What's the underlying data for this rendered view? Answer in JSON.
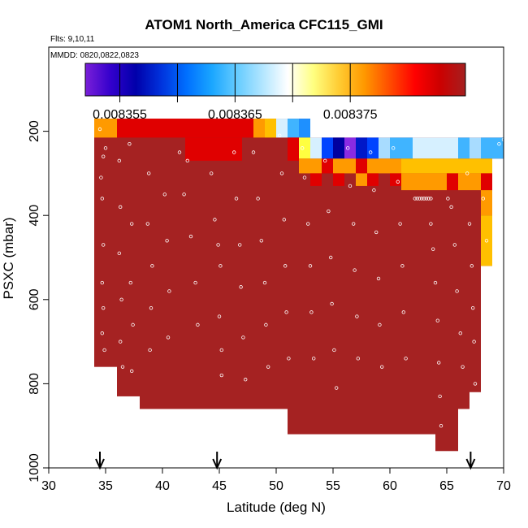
{
  "chart_data": {
    "type": "heatmap",
    "title": "ATOM1 North_America CFC115_GMI",
    "flights_label": "Flts: 9,10,11",
    "dates_label": "MMDD: 0820,0822,0823",
    "xlabel": "Latitude (deg N)",
    "ylabel": "PSXC (mbar)",
    "xlim": [
      30,
      70
    ],
    "ylim": [
      1000,
      0
    ],
    "x_ticks": [
      30,
      35,
      40,
      45,
      50,
      55,
      60,
      65,
      70
    ],
    "y_ticks": [
      200,
      400,
      600,
      800,
      1000
    ],
    "colorbar": {
      "range": [
        0.008352,
        0.008385
      ],
      "ticks": [
        0.008355,
        0.008365,
        0.008375
      ],
      "tick_labels": [
        "0.008355",
        "0.008365",
        "0.008375"
      ],
      "divisions": [
        0.008355,
        0.00836,
        0.008365,
        0.00837,
        0.008375
      ],
      "colors": [
        "#7a1fd8",
        "#3300cc",
        "#0000aa",
        "#0033dd",
        "#0070ff",
        "#1aa6ff",
        "#66ccff",
        "#b3e6ff",
        "#ffffff",
        "#ffff80",
        "#ffcc33",
        "#ff9900",
        "#ff4d00",
        "#ff0000",
        "#cc0000",
        "#a52020"
      ]
    },
    "columns": [
      {
        "lat": [
          34,
          36
        ],
        "top": 170,
        "bottom": 760,
        "bands": [
          [
            170,
            215,
            "orange"
          ]
        ]
      },
      {
        "lat": [
          36,
          38
        ],
        "top": 170,
        "bottom": 830,
        "bands": [
          [
            170,
            215,
            "red"
          ]
        ]
      },
      {
        "lat": [
          38,
          42
        ],
        "top": 170,
        "bottom": 860,
        "bands": [
          [
            170,
            215,
            "red"
          ]
        ]
      },
      {
        "lat": [
          42,
          47
        ],
        "top": 170,
        "bottom": 860,
        "bands": [
          [
            170,
            215,
            "red"
          ],
          [
            215,
            270,
            "red"
          ]
        ]
      },
      {
        "lat": [
          47,
          48
        ],
        "top": 170,
        "bottom": 860,
        "bands": [
          [
            170,
            215,
            "red"
          ]
        ]
      },
      {
        "lat": [
          48,
          49
        ],
        "top": 170,
        "bottom": 860,
        "bands": [
          [
            170,
            215,
            "orange"
          ]
        ]
      },
      {
        "lat": [
          49,
          50
        ],
        "top": 170,
        "bottom": 860,
        "bands": [
          [
            170,
            215,
            "gold"
          ]
        ]
      },
      {
        "lat": [
          50,
          51
        ],
        "top": 170,
        "bottom": 860,
        "bands": [
          [
            170,
            215,
            "lightblue"
          ]
        ]
      },
      {
        "lat": [
          51,
          52
        ],
        "top": 170,
        "bottom": 920,
        "bands": [
          [
            170,
            215,
            "skyblue"
          ],
          [
            215,
            270,
            "red"
          ]
        ]
      },
      {
        "lat": [
          52,
          53
        ],
        "top": 170,
        "bottom": 920,
        "bands": [
          [
            170,
            215,
            "deepskyblue"
          ],
          [
            215,
            265,
            "yellow"
          ],
          [
            265,
            300,
            "orange"
          ]
        ]
      },
      {
        "lat": [
          53,
          54
        ],
        "top": 215,
        "bottom": 920,
        "bands": [
          [
            215,
            265,
            "lightblue"
          ],
          [
            265,
            300,
            "orange"
          ],
          [
            300,
            330,
            "red"
          ]
        ]
      },
      {
        "lat": [
          54,
          55
        ],
        "top": 215,
        "bottom": 920,
        "bands": [
          [
            215,
            265,
            "blue"
          ],
          [
            265,
            300,
            "red"
          ]
        ]
      },
      {
        "lat": [
          55,
          56
        ],
        "top": 215,
        "bottom": 920,
        "bands": [
          [
            215,
            265,
            "navy"
          ],
          [
            265,
            300,
            "orange"
          ],
          [
            300,
            330,
            "red"
          ]
        ]
      },
      {
        "lat": [
          56,
          57
        ],
        "top": 215,
        "bottom": 920,
        "bands": [
          [
            215,
            265,
            "purple"
          ],
          [
            265,
            300,
            "orange"
          ]
        ]
      },
      {
        "lat": [
          57,
          58
        ],
        "top": 215,
        "bottom": 920,
        "bands": [
          [
            215,
            265,
            "darkblue"
          ],
          [
            265,
            300,
            "red"
          ],
          [
            300,
            330,
            "orange"
          ]
        ]
      },
      {
        "lat": [
          58,
          59
        ],
        "top": 215,
        "bottom": 920,
        "bands": [
          [
            215,
            265,
            "blue"
          ],
          [
            265,
            300,
            "orange"
          ],
          [
            300,
            330,
            "red"
          ]
        ]
      },
      {
        "lat": [
          59,
          60
        ],
        "top": 215,
        "bottom": 920,
        "bands": [
          [
            215,
            265,
            "azure"
          ],
          [
            265,
            300,
            "orange"
          ]
        ]
      },
      {
        "lat": [
          60,
          61
        ],
        "top": 215,
        "bottom": 920,
        "bands": [
          [
            215,
            265,
            "skyblue"
          ],
          [
            265,
            300,
            "orange"
          ],
          [
            300,
            330,
            "red"
          ]
        ]
      },
      {
        "lat": [
          61,
          62
        ],
        "top": 215,
        "bottom": 920,
        "bands": [
          [
            215,
            265,
            "skyblue"
          ],
          [
            265,
            300,
            "gold"
          ],
          [
            300,
            340,
            "orange"
          ]
        ]
      },
      {
        "lat": [
          62,
          64
        ],
        "top": 215,
        "bottom": 920,
        "bands": [
          [
            215,
            265,
            "lightblue"
          ],
          [
            265,
            300,
            "gold"
          ],
          [
            300,
            340,
            "orange"
          ]
        ]
      },
      {
        "lat": [
          64,
          65
        ],
        "top": 215,
        "bottom": 960,
        "bands": [
          [
            215,
            265,
            "lightblue"
          ],
          [
            265,
            300,
            "gold"
          ],
          [
            300,
            340,
            "orange"
          ]
        ]
      },
      {
        "lat": [
          65,
          66
        ],
        "top": 215,
        "bottom": 960,
        "bands": [
          [
            215,
            265,
            "lightblue"
          ],
          [
            265,
            300,
            "gold"
          ],
          [
            300,
            340,
            "red"
          ]
        ]
      },
      {
        "lat": [
          66,
          67
        ],
        "top": 215,
        "bottom": 860,
        "bands": [
          [
            215,
            265,
            "skyblue"
          ],
          [
            265,
            300,
            "gold"
          ],
          [
            300,
            340,
            "orange"
          ]
        ]
      },
      {
        "lat": [
          67,
          68
        ],
        "top": 215,
        "bottom": 820,
        "bands": [
          [
            215,
            265,
            "azure"
          ],
          [
            265,
            300,
            "gold"
          ],
          [
            300,
            340,
            "orange"
          ]
        ]
      },
      {
        "lat": [
          68,
          69
        ],
        "top": 215,
        "bottom": 520,
        "bands": [
          [
            215,
            265,
            "skyblue"
          ],
          [
            265,
            300,
            "gold"
          ],
          [
            300,
            340,
            "red"
          ],
          [
            340,
            400,
            "orange"
          ],
          [
            400,
            520,
            "gold"
          ]
        ]
      },
      {
        "lat": [
          69,
          70
        ],
        "top": 215,
        "bottom": 265,
        "bands": [
          [
            215,
            265,
            "skyblue"
          ]
        ]
      }
    ],
    "base_color": "#a52222",
    "obs_points": [
      [
        34.5,
        195
      ],
      [
        35,
        240
      ],
      [
        34.8,
        260
      ],
      [
        34.6,
        310
      ],
      [
        34.7,
        360
      ],
      [
        34.8,
        470
      ],
      [
        34.7,
        560
      ],
      [
        34.8,
        620
      ],
      [
        34.7,
        680
      ],
      [
        34.9,
        720
      ],
      [
        36.2,
        270
      ],
      [
        36.3,
        380
      ],
      [
        36.2,
        490
      ],
      [
        36.4,
        600
      ],
      [
        36.3,
        700
      ],
      [
        36.5,
        760
      ],
      [
        37.1,
        230
      ],
      [
        37.3,
        420
      ],
      [
        37.2,
        560
      ],
      [
        37.4,
        660
      ],
      [
        37.3,
        770
      ],
      [
        37.5,
        840
      ],
      [
        38.8,
        300
      ],
      [
        38.7,
        420
      ],
      [
        39.1,
        520
      ],
      [
        39.0,
        620
      ],
      [
        38.9,
        720
      ],
      [
        40.2,
        350
      ],
      [
        40.4,
        460
      ],
      [
        40.6,
        580
      ],
      [
        40.5,
        690
      ],
      [
        41.5,
        250
      ],
      [
        41.9,
        350
      ],
      [
        42.2,
        270
      ],
      [
        42.5,
        450
      ],
      [
        42.9,
        560
      ],
      [
        43.1,
        660
      ],
      [
        44.3,
        300
      ],
      [
        44.6,
        410
      ],
      [
        44.9,
        470
      ],
      [
        45.1,
        520
      ],
      [
        45.0,
        640
      ],
      [
        45.2,
        720
      ],
      [
        45.2,
        780
      ],
      [
        46.3,
        250
      ],
      [
        46.5,
        360
      ],
      [
        46.8,
        470
      ],
      [
        46.9,
        570
      ],
      [
        47.1,
        690
      ],
      [
        47.3,
        790
      ],
      [
        48.0,
        250
      ],
      [
        48.4,
        360
      ],
      [
        48.7,
        460
      ],
      [
        49.0,
        560
      ],
      [
        49.1,
        660
      ],
      [
        49.3,
        760
      ],
      [
        50.3,
        210
      ],
      [
        50.5,
        300
      ],
      [
        50.7,
        410
      ],
      [
        50.8,
        520
      ],
      [
        50.9,
        630
      ],
      [
        51.1,
        740
      ],
      [
        52.3,
        240
      ],
      [
        52.5,
        310
      ],
      [
        52.8,
        420
      ],
      [
        53.0,
        520
      ],
      [
        53.1,
        630
      ],
      [
        53.3,
        740
      ],
      [
        54.3,
        270
      ],
      [
        54.6,
        390
      ],
      [
        54.8,
        500
      ],
      [
        54.9,
        610
      ],
      [
        55.1,
        720
      ],
      [
        55.3,
        810
      ],
      [
        56.3,
        240
      ],
      [
        56.5,
        330
      ],
      [
        56.8,
        420
      ],
      [
        56.9,
        530
      ],
      [
        57.1,
        640
      ],
      [
        57.2,
        740
      ],
      [
        58.3,
        250
      ],
      [
        58.6,
        340
      ],
      [
        58.8,
        440
      ],
      [
        59.0,
        550
      ],
      [
        59.1,
        660
      ],
      [
        59.3,
        760
      ],
      [
        60.3,
        240
      ],
      [
        60.7,
        320
      ],
      [
        60.9,
        420
      ],
      [
        61.1,
        520
      ],
      [
        61.2,
        630
      ],
      [
        61.4,
        740
      ],
      [
        62.2,
        360
      ],
      [
        62.4,
        360
      ],
      [
        62.6,
        360
      ],
      [
        62.8,
        360
      ],
      [
        63.0,
        360
      ],
      [
        63.2,
        360
      ],
      [
        63.4,
        360
      ],
      [
        63.6,
        360
      ],
      [
        63.6,
        420
      ],
      [
        63.8,
        480
      ],
      [
        64.0,
        560
      ],
      [
        64.2,
        650
      ],
      [
        64.3,
        750
      ],
      [
        64.4,
        830
      ],
      [
        64.5,
        900
      ],
      [
        65.1,
        360
      ],
      [
        65.4,
        380
      ],
      [
        65.7,
        470
      ],
      [
        65.9,
        580
      ],
      [
        66.2,
        680
      ],
      [
        66.4,
        760
      ],
      [
        66.8,
        300
      ],
      [
        67.0,
        420
      ],
      [
        67.2,
        520
      ],
      [
        67.3,
        620
      ],
      [
        67.4,
        700
      ],
      [
        67.5,
        800
      ],
      [
        68.2,
        360
      ],
      [
        68.5,
        460
      ],
      [
        69.6,
        230
      ],
      [
        70.0,
        220
      ]
    ],
    "arrows_lat": [
      34.5,
      44.8,
      67.1
    ]
  }
}
